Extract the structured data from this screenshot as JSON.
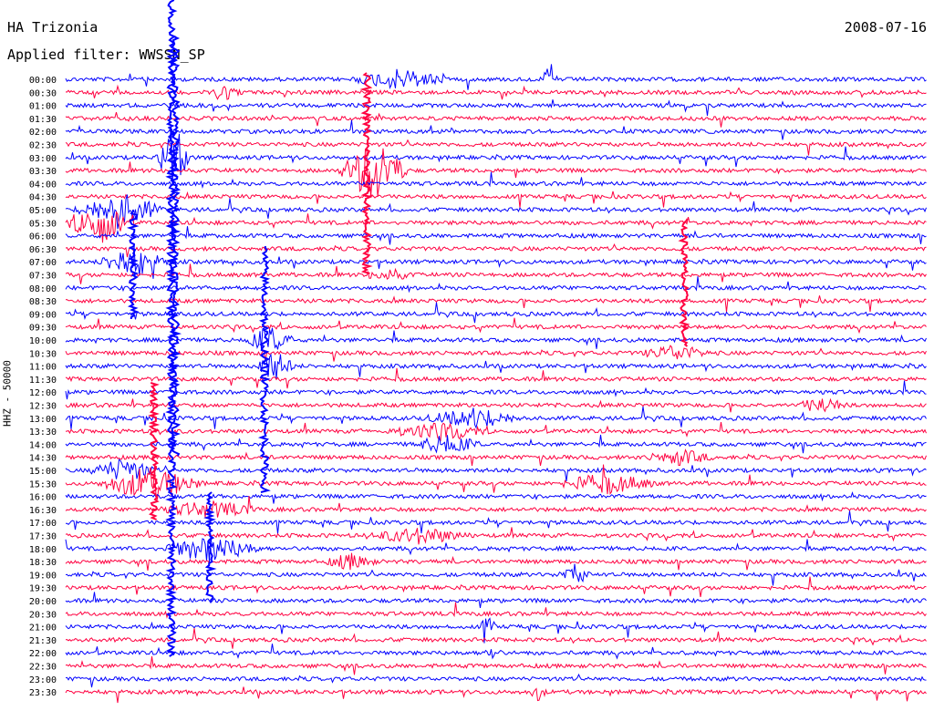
{
  "header": {
    "station": "HA Trizonia",
    "date": "2008-07-16",
    "filter": "Applied filter: WWSSN_SP"
  },
  "chart_data": {
    "type": "line",
    "ylabel": "HHZ - 50000",
    "colors": [
      "#0000ff",
      "#ff0040"
    ],
    "rows": [
      "00:00",
      "00:30",
      "01:00",
      "01:30",
      "02:00",
      "02:30",
      "03:00",
      "03:30",
      "04:00",
      "04:30",
      "05:00",
      "05:30",
      "06:00",
      "06:30",
      "07:00",
      "07:30",
      "08:00",
      "08:30",
      "09:00",
      "09:30",
      "10:00",
      "10:30",
      "11:00",
      "11:30",
      "12:00",
      "12:30",
      "13:00",
      "13:30",
      "14:00",
      "14:30",
      "15:00",
      "15:30",
      "16:00",
      "16:30",
      "17:00",
      "17:30",
      "18:00",
      "18:30",
      "19:00",
      "19:30",
      "20:00",
      "20:30",
      "21:00",
      "21:30",
      "22:00",
      "22:30",
      "23:00",
      "23:30"
    ]
  }
}
